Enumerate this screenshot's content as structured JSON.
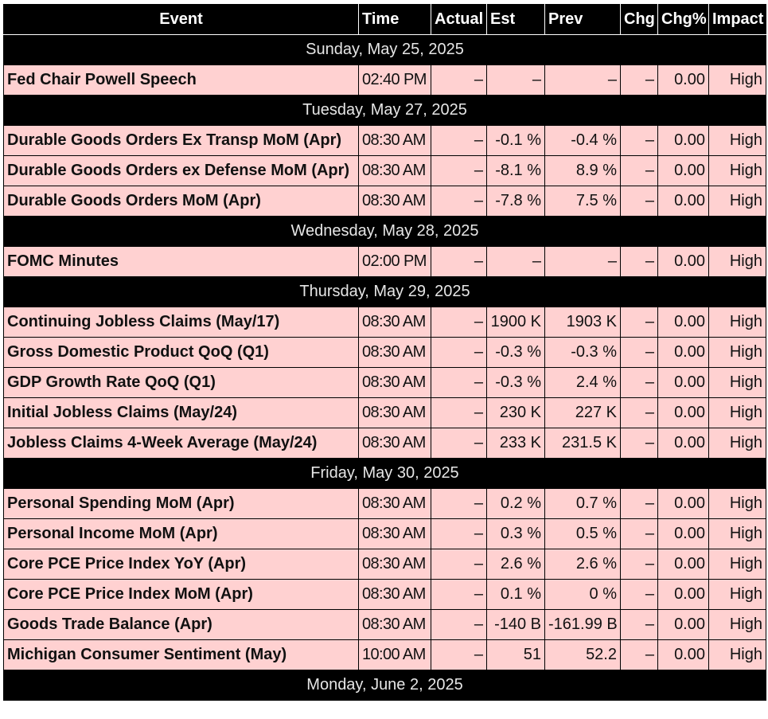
{
  "columns": {
    "event": "Event",
    "time": "Time",
    "actual": "Actual",
    "est": "Est",
    "prev": "Prev",
    "chg": "Chg",
    "chg_pct": "Chg%",
    "impact": "Impact"
  },
  "days": [
    {
      "date": "Sunday, May 25, 2025",
      "events": [
        {
          "event": "Fed Chair Powell Speech",
          "time": "02:40 PM",
          "actual": "–",
          "est": "–",
          "prev": "–",
          "chg": "–",
          "chg_pct": "0.00",
          "impact": "High"
        }
      ]
    },
    {
      "date": "Tuesday, May 27, 2025",
      "events": [
        {
          "event": "Durable Goods Orders Ex Transp MoM (Apr)",
          "time": "08:30 AM",
          "actual": "–",
          "est": "-0.1 %",
          "prev": "-0.4 %",
          "chg": "–",
          "chg_pct": "0.00",
          "impact": "High"
        },
        {
          "event": "Durable Goods Orders ex Defense MoM (Apr)",
          "time": "08:30 AM",
          "actual": "–",
          "est": "-8.1 %",
          "prev": "8.9 %",
          "chg": "–",
          "chg_pct": "0.00",
          "impact": "High"
        },
        {
          "event": "Durable Goods Orders MoM (Apr)",
          "time": "08:30 AM",
          "actual": "–",
          "est": "-7.8 %",
          "prev": "7.5 %",
          "chg": "–",
          "chg_pct": "0.00",
          "impact": "High"
        }
      ]
    },
    {
      "date": "Wednesday, May 28, 2025",
      "events": [
        {
          "event": "FOMC Minutes",
          "time": "02:00 PM",
          "actual": "–",
          "est": "–",
          "prev": "–",
          "chg": "–",
          "chg_pct": "0.00",
          "impact": "High"
        }
      ]
    },
    {
      "date": "Thursday, May 29, 2025",
      "events": [
        {
          "event": "Continuing Jobless Claims (May/17)",
          "time": "08:30 AM",
          "actual": "–",
          "est": "1900 K",
          "prev": "1903 K",
          "chg": "–",
          "chg_pct": "0.00",
          "impact": "High"
        },
        {
          "event": "Gross Domestic Product QoQ (Q1)",
          "time": "08:30 AM",
          "actual": "–",
          "est": "-0.3 %",
          "prev": "-0.3 %",
          "chg": "–",
          "chg_pct": "0.00",
          "impact": "High"
        },
        {
          "event": "GDP Growth Rate QoQ (Q1)",
          "time": "08:30 AM",
          "actual": "–",
          "est": "-0.3 %",
          "prev": "2.4 %",
          "chg": "–",
          "chg_pct": "0.00",
          "impact": "High"
        },
        {
          "event": "Initial Jobless Claims (May/24)",
          "time": "08:30 AM",
          "actual": "–",
          "est": "230 K",
          "prev": "227 K",
          "chg": "–",
          "chg_pct": "0.00",
          "impact": "High"
        },
        {
          "event": "Jobless Claims 4-Week Average (May/24)",
          "time": "08:30 AM",
          "actual": "–",
          "est": "233 K",
          "prev": "231.5 K",
          "chg": "–",
          "chg_pct": "0.00",
          "impact": "High"
        }
      ]
    },
    {
      "date": "Friday, May 30, 2025",
      "events": [
        {
          "event": "Personal Spending MoM (Apr)",
          "time": "08:30 AM",
          "actual": "–",
          "est": "0.2 %",
          "prev": "0.7 %",
          "chg": "–",
          "chg_pct": "0.00",
          "impact": "High"
        },
        {
          "event": "Personal Income MoM (Apr)",
          "time": "08:30 AM",
          "actual": "–",
          "est": "0.3 %",
          "prev": "0.5 %",
          "chg": "–",
          "chg_pct": "0.00",
          "impact": "High"
        },
        {
          "event": "Core PCE Price Index YoY (Apr)",
          "time": "08:30 AM",
          "actual": "–",
          "est": "2.6 %",
          "prev": "2.6 %",
          "chg": "–",
          "chg_pct": "0.00",
          "impact": "High"
        },
        {
          "event": "Core PCE Price Index MoM (Apr)",
          "time": "08:30 AM",
          "actual": "–",
          "est": "0.1 %",
          "prev": "0 %",
          "chg": "–",
          "chg_pct": "0.00",
          "impact": "High"
        },
        {
          "event": "Goods Trade Balance (Apr)",
          "time": "08:30 AM",
          "actual": "–",
          "est": "-140 B",
          "prev": "-161.99 B",
          "chg": "–",
          "chg_pct": "0.00",
          "impact": "High"
        },
        {
          "event": "Michigan Consumer Sentiment (May)",
          "time": "10:00 AM",
          "actual": "–",
          "est": "51",
          "prev": "52.2",
          "chg": "–",
          "chg_pct": "0.00",
          "impact": "High"
        }
      ]
    },
    {
      "date": "Monday, June 2, 2025",
      "events": []
    }
  ],
  "colors": {
    "header_bg": "#000000",
    "header_text": "#ffffff",
    "day_row_bg": "#000000",
    "day_row_text": "#e6e6e6",
    "event_row_bg": "#ffd1d1"
  }
}
